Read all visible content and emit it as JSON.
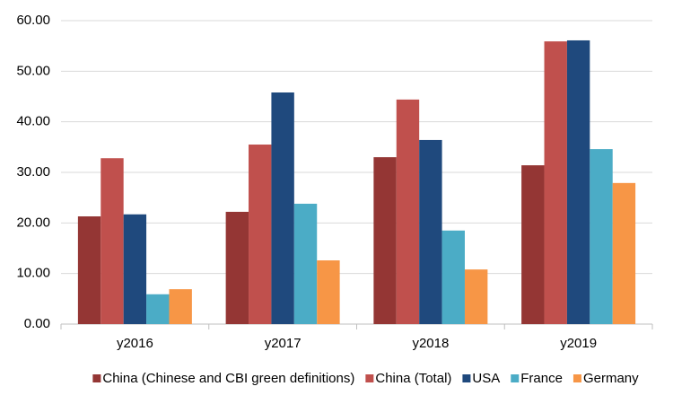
{
  "chart_data": {
    "type": "bar",
    "categories": [
      "y2016",
      "y2017",
      "y2018",
      "y2019"
    ],
    "series": [
      {
        "name": "China (Chinese and CBI green definitions)",
        "color": "#943634",
        "values": [
          21.3,
          22.2,
          33.0,
          31.4
        ]
      },
      {
        "name": "China (Total)",
        "color": "#c0504d",
        "values": [
          32.8,
          35.5,
          44.4,
          55.9
        ]
      },
      {
        "name": "USA",
        "color": "#1f497d",
        "values": [
          21.7,
          45.8,
          36.4,
          56.1
        ]
      },
      {
        "name": "France",
        "color": "#4bacc6",
        "values": [
          5.9,
          23.8,
          18.5,
          34.6
        ]
      },
      {
        "name": "Germany",
        "color": "#f79646",
        "values": [
          6.9,
          12.6,
          10.8,
          27.9
        ]
      }
    ],
    "ylim": [
      0,
      60
    ],
    "yticks": [
      {
        "value": 0,
        "label": "0.00"
      },
      {
        "value": 10,
        "label": "10.00"
      },
      {
        "value": 20,
        "label": "20.00"
      },
      {
        "value": 30,
        "label": "30.00"
      },
      {
        "value": 40,
        "label": "40.00"
      },
      {
        "value": 50,
        "label": "50.00"
      },
      {
        "value": 60,
        "label": "60.00"
      }
    ],
    "grid": true,
    "legend": "bottom"
  }
}
